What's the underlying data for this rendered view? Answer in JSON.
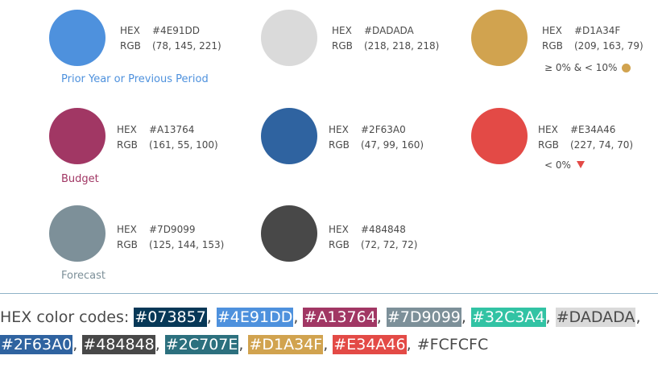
{
  "labels": {
    "hex": "HEX",
    "rgb": "RGB"
  },
  "swatches": [
    {
      "hex_label": "#4E91DD",
      "rgb_label": "(78, 145, 221)",
      "color": "#4E91DD",
      "caption": "Prior Year or Previous Period",
      "caption_color": "#4E91DD"
    },
    {
      "hex_label": "#DADADA",
      "rgb_label": "(218, 218, 218)",
      "color": "#DADADA"
    },
    {
      "hex_label": "#D1A34F",
      "rgb_label": "(209, 163, 79)",
      "color": "#D1A34F",
      "note": "≥ 0% & < 10%"
    },
    {
      "hex_label": "#A13764",
      "rgb_label": "(161, 55, 100)",
      "color": "#A13764",
      "caption": "Budget",
      "caption_color": "#A13764"
    },
    {
      "hex_label": "#2F63A0",
      "rgb_label": "(47, 99, 160)",
      "color": "#2F63A0"
    },
    {
      "hex_label": "#E34A46",
      "rgb_label": "(227, 74, 70)",
      "color": "#E34A46",
      "note": "< 0%"
    },
    {
      "hex_label": "#7D9099",
      "rgb_label": "(125, 144, 153)",
      "color": "#7D9099",
      "caption": "Forecast",
      "caption_color": "#7D9099"
    },
    {
      "hex_label": "#484848",
      "rgb_label": "(72, 72, 72)",
      "color": "#484848"
    }
  ],
  "codes": {
    "prefix": "HEX color codes:",
    "items": [
      {
        "code": "#073857",
        "color": "#073857"
      },
      {
        "code": "#4E91DD",
        "color": "#4E91DD"
      },
      {
        "code": "#A13764",
        "color": "#A13764"
      },
      {
        "code": "#7D9099",
        "color": "#7D9099"
      },
      {
        "code": "#32C3A4",
        "color": "#32C3A4"
      },
      {
        "code": "#DADADA",
        "color": "#DADADA"
      },
      {
        "code": "#2F63A0",
        "color": "#2F63A0"
      },
      {
        "code": "#484848",
        "color": "#484848"
      },
      {
        "code": "#2C707E",
        "color": "#2C707E"
      },
      {
        "code": "#D1A34F",
        "color": "#D1A34F"
      },
      {
        "code": "#E34A46",
        "color": "#E34A46"
      },
      {
        "code": "#FCFCFC",
        "color": "#FCFCFC"
      }
    ]
  }
}
